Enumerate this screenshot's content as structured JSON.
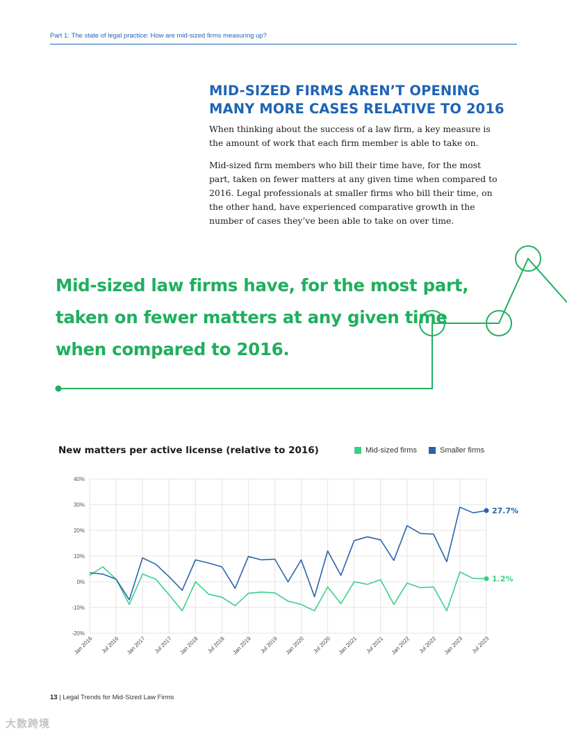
{
  "header": {
    "running_title": "Part 1: The state of legal practice: How are mid-sized firms measuring up?"
  },
  "section": {
    "heading_line1": "MID-SIZED FIRMS AREN’T OPENING",
    "heading_line2": "MANY MORE CASES RELATIVE TO 2016",
    "paragraph1": "When thinking about the success of a law firm, a key measure is the amount of work that each firm member is able to take on.",
    "paragraph2": "Mid-sized firm members who bill their time have, for the most part, taken on fewer matters at any given time when compared to 2016. Legal professionals at smaller firms who bill their time, on the other hand, have experienced comparative growth in the number of cases they’ve been able to take on over time."
  },
  "pullquote": {
    "line1": "Mid-sized law firms have, for the most part,",
    "line2": "taken on fewer matters at any given time",
    "line3": "when compared to 2016."
  },
  "colors": {
    "brand_blue": "#1f63b5",
    "brand_green": "#1faf5e",
    "mid_series": "#3ccf8a",
    "small_series": "#2a63a8"
  },
  "chart_data": {
    "type": "line",
    "title": "New matters per active license (relative to 2016)",
    "xlabel": "",
    "ylabel": "",
    "ylim": [
      -20,
      40
    ],
    "yticks": [
      40,
      30,
      20,
      10,
      0,
      -10,
      -20
    ],
    "ytick_labels": [
      "40%",
      "30%",
      "20%",
      "10%",
      "0%",
      "-10%",
      "-20%"
    ],
    "x_tick_labels": [
      "Jan 2016",
      "Jul 2016",
      "Jan 2017",
      "Jul 2017",
      "Jan 2018",
      "Jul 2018",
      "Jan 2019",
      "Jul 2019",
      "Jan 2020",
      "Jul 2020",
      "Jan 2021",
      "Jul 2021",
      "Jan 2022",
      "Jul 2022",
      "Jan 2023",
      "Jul 2023"
    ],
    "legend": [
      "Mid-sized firms",
      "Smaller firms"
    ],
    "series": [
      {
        "name": "Mid-sized firms",
        "color": "#3ccf8a",
        "values": [
          2.5,
          5.8,
          1.0,
          -8.8,
          3.0,
          1.0,
          -5.0,
          -11.3,
          0.0,
          -4.8,
          -6.0,
          -9.3,
          -4.5,
          -4.0,
          -4.3,
          -7.5,
          -8.8,
          -11.3,
          -2.0,
          -8.5,
          0.0,
          -1.0,
          0.8,
          -8.8,
          -0.5,
          -2.3,
          -2.0,
          -11.3,
          3.8,
          1.3,
          1.2
        ],
        "end_label": "1.2%"
      },
      {
        "name": "Smaller firms",
        "color": "#2a63a8",
        "values": [
          3.5,
          3.0,
          1.0,
          -7.0,
          9.3,
          6.8,
          2.0,
          -3.3,
          8.5,
          7.3,
          5.8,
          -2.5,
          9.8,
          8.5,
          8.8,
          0.0,
          8.5,
          -5.8,
          12.0,
          2.5,
          16.0,
          17.5,
          16.3,
          8.3,
          21.8,
          18.8,
          18.5,
          7.8,
          29.0,
          26.8,
          27.7
        ],
        "end_label": "27.7%"
      }
    ]
  },
  "footer": {
    "page_number": "13",
    "separator": "|",
    "publication": "Legal Trends for Mid-Sized Law Firms"
  },
  "watermark": {
    "text": "大数跨境"
  }
}
